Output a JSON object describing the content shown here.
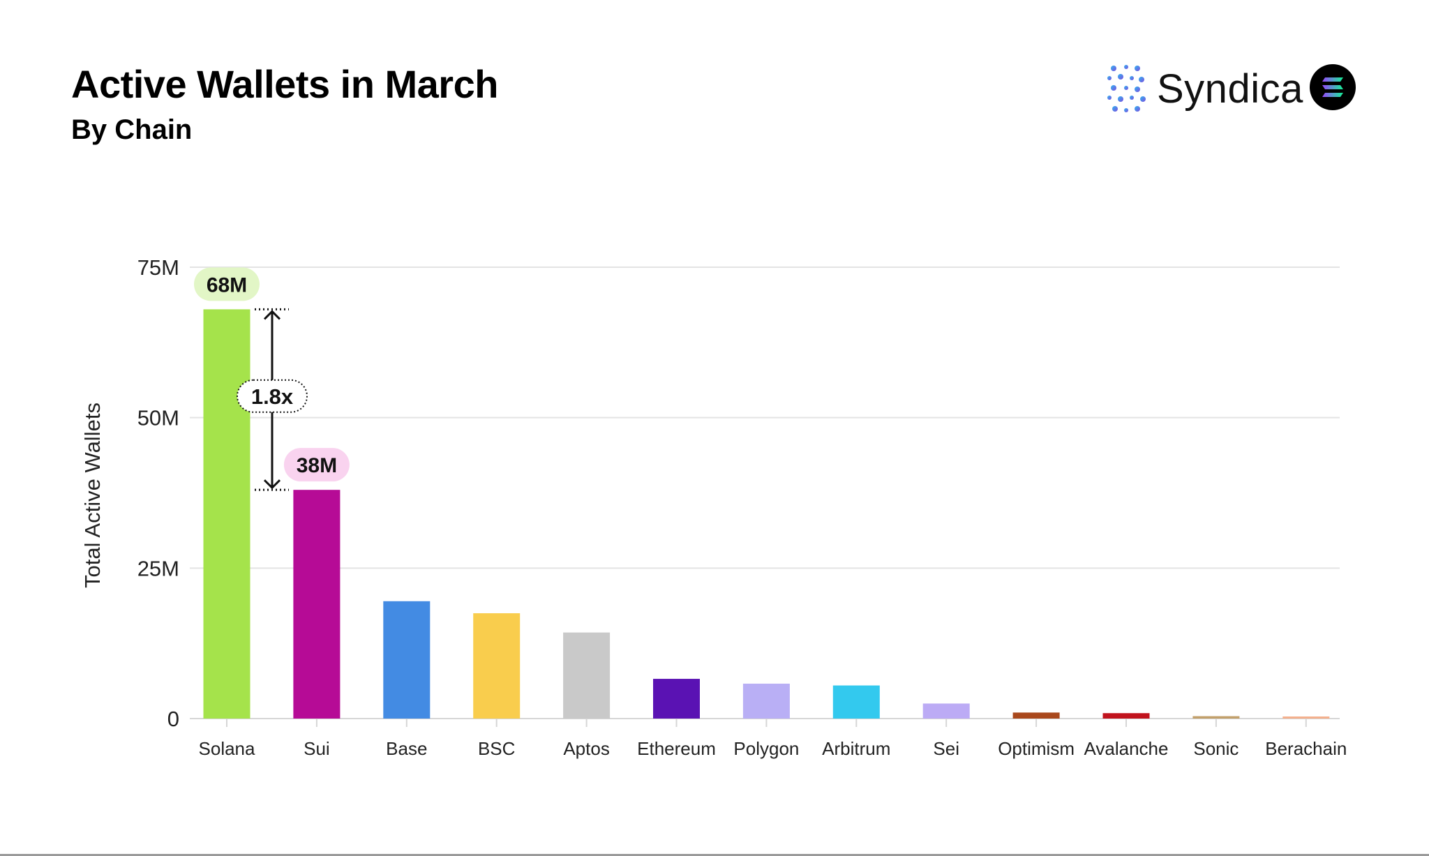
{
  "header": {
    "title": "Active Wallets in March",
    "subtitle": "By Chain"
  },
  "brand": {
    "name": "Syndica",
    "logo_icon": "syndica-dots-icon",
    "chain_icon": "solana-icon",
    "colors": {
      "text": "#111111",
      "dots_start": "#2fb6f0",
      "dots_end": "#7b4fe0",
      "chain_bg": "#000000"
    }
  },
  "chart_data": {
    "type": "bar",
    "title": "Active Wallets in March",
    "subtitle": "By Chain",
    "xlabel": "",
    "ylabel": "Total Active Wallets",
    "ylim": [
      0,
      75
    ],
    "unit": "M",
    "yticks": [
      {
        "value": 0,
        "label": "0"
      },
      {
        "value": 25,
        "label": "25M"
      },
      {
        "value": 50,
        "label": "50M"
      },
      {
        "value": 75,
        "label": "75M"
      }
    ],
    "grid": true,
    "categories": [
      "Solana",
      "Sui",
      "Base",
      "BSC",
      "Aptos",
      "Ethereum",
      "Polygon",
      "Arbitrum",
      "Sei",
      "Optimism",
      "Avalanche",
      "Sonic",
      "Berachain"
    ],
    "values": [
      68,
      38,
      19.5,
      17.5,
      14.3,
      6.6,
      5.8,
      5.5,
      2.5,
      1.0,
      0.9,
      0.4,
      0.3
    ],
    "colors": [
      "#a5e34b",
      "#b60b96",
      "#438be3",
      "#f9cd4d",
      "#c9c9c9",
      "#5a12b3",
      "#b9aff5",
      "#33c9ee",
      "#bcabf5",
      "#a9481c",
      "#c1131d",
      "#c2a06b",
      "#f4b08d"
    ],
    "data_labels": [
      {
        "category": "Solana",
        "text": "68M",
        "background": "#e2f6c6"
      },
      {
        "category": "Sui",
        "text": "38M",
        "background": "#f9d3ef"
      }
    ],
    "annotation": {
      "from": "Sui",
      "to": "Solana",
      "text": "1.8x"
    }
  }
}
